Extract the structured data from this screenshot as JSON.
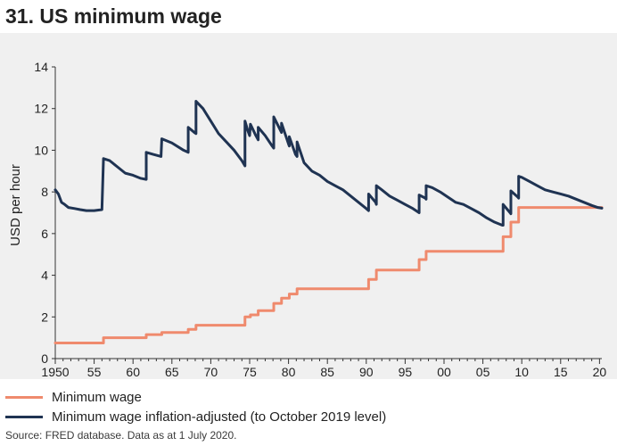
{
  "title": "31. US minimum wage",
  "source": "Source: FRED database. Data as at 1 July 2020.",
  "colors": {
    "nominal": "#ef8a6d",
    "real": "#1f3352",
    "panel": "#f0f0f0"
  },
  "chart_data": {
    "type": "line",
    "title": "31. US minimum wage",
    "ylabel": "USD per hour",
    "xlabel": "",
    "xlim": [
      1950,
      2020.3
    ],
    "ylim": [
      0,
      14
    ],
    "yticks": [
      0,
      2,
      4,
      6,
      8,
      10,
      12,
      14
    ],
    "xticks": [
      {
        "value": 1950,
        "label": "1950"
      },
      {
        "value": 1955,
        "label": "55"
      },
      {
        "value": 1960,
        "label": "60"
      },
      {
        "value": 1965,
        "label": "65"
      },
      {
        "value": 1970,
        "label": "70"
      },
      {
        "value": 1975,
        "label": "75"
      },
      {
        "value": 1980,
        "label": "80"
      },
      {
        "value": 1985,
        "label": "85"
      },
      {
        "value": 1990,
        "label": "90"
      },
      {
        "value": 1995,
        "label": "95"
      },
      {
        "value": 2000,
        "label": "00"
      },
      {
        "value": 2005,
        "label": "05"
      },
      {
        "value": 2010,
        "label": "10"
      },
      {
        "value": 2015,
        "label": "15"
      },
      {
        "value": 2020,
        "label": "20"
      }
    ],
    "series": [
      {
        "name": "Minimum wage",
        "color": "#ef8a6d",
        "step": true,
        "points": [
          [
            1950,
            0.75
          ],
          [
            1956.2,
            1.0
          ],
          [
            1961.7,
            1.15
          ],
          [
            1963.7,
            1.25
          ],
          [
            1967.1,
            1.4
          ],
          [
            1968.1,
            1.6
          ],
          [
            1974.4,
            2.0
          ],
          [
            1975.1,
            2.1
          ],
          [
            1976.1,
            2.3
          ],
          [
            1978.1,
            2.65
          ],
          [
            1979.1,
            2.9
          ],
          [
            1980.1,
            3.1
          ],
          [
            1981.1,
            3.35
          ],
          [
            1990.3,
            3.8
          ],
          [
            1991.3,
            4.25
          ],
          [
            1996.8,
            4.75
          ],
          [
            1997.7,
            5.15
          ],
          [
            2007.6,
            5.85
          ],
          [
            2008.6,
            6.55
          ],
          [
            2009.6,
            7.25
          ],
          [
            2020.3,
            7.25
          ]
        ]
      },
      {
        "name": "Minimum wage inflation-adjusted (to October 2019 level)",
        "color": "#1f3352",
        "step": false,
        "points": [
          [
            1950.0,
            8.1
          ],
          [
            1950.4,
            7.9
          ],
          [
            1950.8,
            7.5
          ],
          [
            1951.2,
            7.4
          ],
          [
            1951.7,
            7.25
          ],
          [
            1952.5,
            7.2
          ],
          [
            1953.2,
            7.15
          ],
          [
            1954.0,
            7.1
          ],
          [
            1955.0,
            7.1
          ],
          [
            1956.0,
            7.15
          ],
          [
            1956.2,
            9.6
          ],
          [
            1957.0,
            9.5
          ],
          [
            1958.0,
            9.2
          ],
          [
            1959.0,
            8.9
          ],
          [
            1960.0,
            8.8
          ],
          [
            1961.0,
            8.65
          ],
          [
            1961.7,
            8.6
          ],
          [
            1961.7,
            9.9
          ],
          [
            1962.6,
            9.8
          ],
          [
            1963.6,
            9.7
          ],
          [
            1963.7,
            10.55
          ],
          [
            1965.0,
            10.35
          ],
          [
            1966.5,
            10.0
          ],
          [
            1967.1,
            9.9
          ],
          [
            1967.1,
            11.1
          ],
          [
            1967.9,
            10.85
          ],
          [
            1968.1,
            10.8
          ],
          [
            1968.1,
            12.35
          ],
          [
            1969.0,
            12.0
          ],
          [
            1970.0,
            11.4
          ],
          [
            1971.0,
            10.8
          ],
          [
            1972.0,
            10.4
          ],
          [
            1973.0,
            10.0
          ],
          [
            1974.0,
            9.5
          ],
          [
            1974.4,
            9.25
          ],
          [
            1974.4,
            11.4
          ],
          [
            1974.8,
            10.9
          ],
          [
            1975.0,
            10.7
          ],
          [
            1975.1,
            11.25
          ],
          [
            1975.8,
            10.7
          ],
          [
            1976.1,
            10.5
          ],
          [
            1976.1,
            11.1
          ],
          [
            1977.0,
            10.7
          ],
          [
            1977.9,
            10.2
          ],
          [
            1978.1,
            10.1
          ],
          [
            1978.1,
            11.6
          ],
          [
            1978.9,
            11.0
          ],
          [
            1979.1,
            10.85
          ],
          [
            1979.1,
            11.3
          ],
          [
            1980.0,
            10.3
          ],
          [
            1980.1,
            10.2
          ],
          [
            1980.1,
            10.65
          ],
          [
            1980.9,
            9.8
          ],
          [
            1981.1,
            9.7
          ],
          [
            1981.1,
            10.4
          ],
          [
            1982.0,
            9.4
          ],
          [
            1983.0,
            9.0
          ],
          [
            1984.0,
            8.8
          ],
          [
            1985.0,
            8.5
          ],
          [
            1986.0,
            8.3
          ],
          [
            1987.0,
            8.1
          ],
          [
            1988.0,
            7.8
          ],
          [
            1989.0,
            7.5
          ],
          [
            1990.0,
            7.2
          ],
          [
            1990.3,
            7.1
          ],
          [
            1990.3,
            7.9
          ],
          [
            1991.2,
            7.5
          ],
          [
            1991.3,
            7.4
          ],
          [
            1991.3,
            8.3
          ],
          [
            1992.0,
            8.1
          ],
          [
            1993.0,
            7.8
          ],
          [
            1994.0,
            7.6
          ],
          [
            1995.0,
            7.4
          ],
          [
            1996.0,
            7.2
          ],
          [
            1996.8,
            7.0
          ],
          [
            1996.8,
            7.85
          ],
          [
            1997.6,
            7.7
          ],
          [
            1997.7,
            7.65
          ],
          [
            1997.7,
            8.3
          ],
          [
            1998.5,
            8.2
          ],
          [
            1999.5,
            8.0
          ],
          [
            2000.5,
            7.75
          ],
          [
            2001.5,
            7.5
          ],
          [
            2002.5,
            7.4
          ],
          [
            2003.5,
            7.2
          ],
          [
            2004.5,
            7.0
          ],
          [
            2005.5,
            6.75
          ],
          [
            2006.5,
            6.55
          ],
          [
            2007.5,
            6.4
          ],
          [
            2007.6,
            6.4
          ],
          [
            2007.6,
            7.4
          ],
          [
            2008.5,
            7.0
          ],
          [
            2008.6,
            6.95
          ],
          [
            2008.6,
            8.05
          ],
          [
            2009.5,
            7.75
          ],
          [
            2009.6,
            7.7
          ],
          [
            2009.6,
            8.75
          ],
          [
            2010.0,
            8.7
          ],
          [
            2011.0,
            8.5
          ],
          [
            2012.0,
            8.3
          ],
          [
            2013.0,
            8.1
          ],
          [
            2014.0,
            8.0
          ],
          [
            2015.0,
            7.9
          ],
          [
            2016.0,
            7.8
          ],
          [
            2017.0,
            7.65
          ],
          [
            2018.0,
            7.5
          ],
          [
            2019.0,
            7.35
          ],
          [
            2019.8,
            7.25
          ],
          [
            2020.3,
            7.22
          ]
        ]
      }
    ]
  }
}
